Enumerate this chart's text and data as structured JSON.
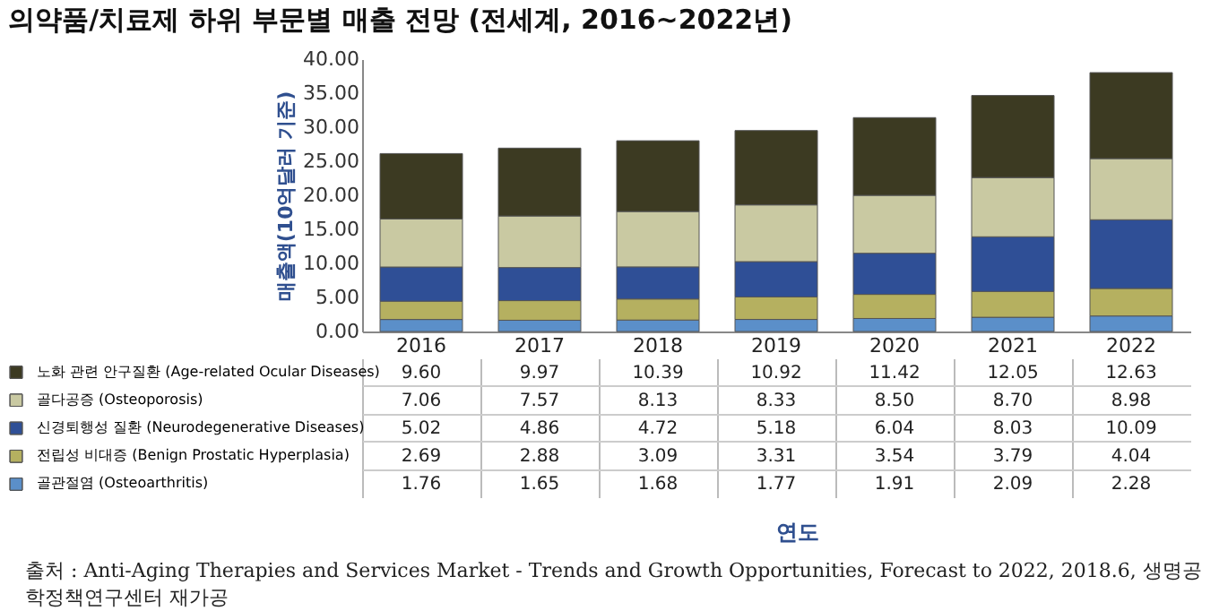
{
  "chart_data": {
    "type": "bar",
    "title": "의약품/치료제 하위 부문별 매출 전망 (전세계, 2016~2022년)",
    "ylabel": "매출액(10억달러 기준)",
    "categories": [
      "2016",
      "2017",
      "2018",
      "2019",
      "2020",
      "2021",
      "2022"
    ],
    "stacked": true,
    "data_labels": true,
    "legend": "bottom",
    "ylim": [
      0,
      40
    ],
    "yticks": [
      {
        "value": 0,
        "label": "0.00"
      },
      {
        "value": 5,
        "label": "5.00"
      },
      {
        "value": 10,
        "label": "10.00"
      },
      {
        "value": 15,
        "label": "15.00"
      },
      {
        "value": 20,
        "label": "20.00"
      },
      {
        "value": 25,
        "label": "25.00"
      },
      {
        "value": 30,
        "label": "30.00"
      },
      {
        "value": 35,
        "label": "35.00"
      },
      {
        "value": 40,
        "label": "40.00"
      }
    ],
    "series": [
      {
        "name": "골관절염 (Osteoarthritis)",
        "color": "#5b8fc9",
        "values": [
          1.76,
          1.65,
          1.68,
          1.77,
          1.91,
          2.09,
          2.28
        ]
      },
      {
        "name": "전립성 비대증 (Benign Prostatic Hyperplasia)",
        "color": "#b5b060",
        "values": [
          2.69,
          2.88,
          3.09,
          3.31,
          3.54,
          3.79,
          4.04
        ]
      },
      {
        "name": "신경퇴행성 질환 (Neurodegenerative Diseases)",
        "color": "#2f4f96",
        "values": [
          5.02,
          4.86,
          4.72,
          5.18,
          6.04,
          8.03,
          10.09
        ]
      },
      {
        "name": "골다공증 (Osteoporosis)",
        "color": "#c9c9a2",
        "values": [
          7.06,
          7.57,
          8.13,
          8.33,
          8.5,
          8.7,
          8.98
        ],
        "value_labels": [
          "7.06",
          "7.57",
          "8.13",
          "8.33",
          "8.50",
          "8.70",
          "8.98"
        ]
      },
      {
        "name": "노화 관련 안구질환 (Age-related Ocular Diseases)",
        "color": "#3c3a22",
        "values": [
          9.6,
          9.97,
          10.39,
          10.92,
          11.42,
          12.05,
          12.63
        ],
        "value_labels": [
          "9.60",
          "9.97",
          "10.39",
          "10.92",
          "11.42",
          "12.05",
          "12.63"
        ]
      }
    ],
    "annotations": [
      "연도",
      "출처 : Anti-Aging Therapies and Services Market - Trends and Growth Opportunities, Forecast to 2022, 2018.6, 생명공학정책연구센터 재가공"
    ]
  }
}
